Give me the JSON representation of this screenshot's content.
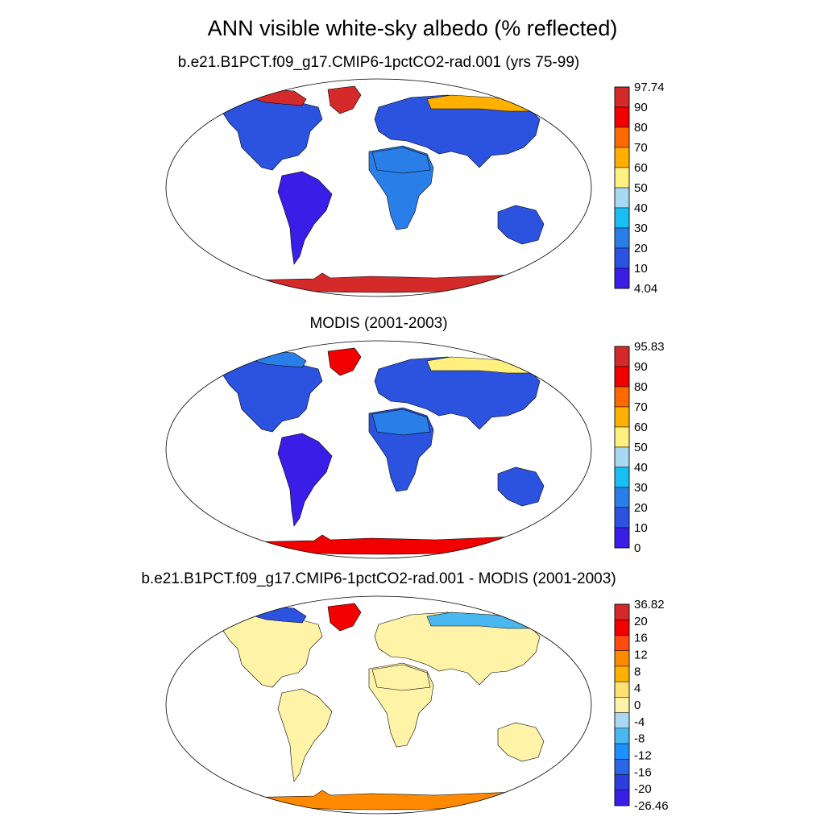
{
  "figure": {
    "title": "ANN visible white-sky albedo (% reflected)"
  },
  "colors": {
    "ocean": "#ffffff",
    "coast": "#000000",
    "outline": "#000000"
  },
  "panels": [
    {
      "id": "model",
      "title": "b.e21.B1PCT.f09_g17.CMIP6-1pctCO2-rad.001 (yrs 75-99)",
      "colorbar": {
        "max_label": "97.74",
        "min_label": "4.04",
        "labels": [
          "97.74",
          "90",
          "80",
          "70",
          "60",
          "50",
          "40",
          "30",
          "20",
          "10",
          "4.04"
        ],
        "colors": [
          "#d42a2a",
          "#f20000",
          "#ff6a00",
          "#ffb000",
          "#fff080",
          "#a9d8f3",
          "#19bff2",
          "#2a7ee8",
          "#2c52e0",
          "#3a1ee8"
        ]
      },
      "regions": {
        "north_america": "#2c52e0",
        "arctic_canada": "#d42a2a",
        "greenland": "#d42a2a",
        "south_america": "#3a1ee8",
        "africa": "#2a7ee8",
        "sahara": "#2a7ee8",
        "eurasia": "#2c52e0",
        "siberia_north": "#ffb000",
        "australia": "#2c52e0",
        "antarctica": "#d42a2a"
      }
    },
    {
      "id": "obs",
      "title": "MODIS (2001-2003)",
      "colorbar": {
        "max_label": "95.83",
        "min_label": "0",
        "labels": [
          "95.83",
          "90",
          "80",
          "70",
          "60",
          "50",
          "40",
          "30",
          "20",
          "10",
          "0"
        ],
        "colors": [
          "#d42a2a",
          "#f20000",
          "#ff6a00",
          "#ffb000",
          "#fff080",
          "#a9d8f3",
          "#19bff2",
          "#2a7ee8",
          "#2c52e0",
          "#3a1ee8"
        ]
      },
      "regions": {
        "north_america": "#2c52e0",
        "arctic_canada": "#2a7ee8",
        "greenland": "#f20000",
        "south_america": "#3a1ee8",
        "africa": "#2c52e0",
        "sahara": "#2a7ee8",
        "eurasia": "#2c52e0",
        "siberia_north": "#fff080",
        "australia": "#2c52e0",
        "antarctica": "#f20000"
      }
    },
    {
      "id": "diff",
      "title": "b.e21.B1PCT.f09_g17.CMIP6-1pctCO2-rad.001 - MODIS (2001-2003)",
      "colorbar": {
        "max_label": "36.82",
        "min_label": "-26.46",
        "labels": [
          "36.82",
          "20",
          "16",
          "12",
          "8",
          "4",
          "0",
          "-4",
          "-8",
          "-12",
          "-16",
          "-20",
          "-26.46"
        ],
        "colors": [
          "#d42a2a",
          "#f20000",
          "#ff4a10",
          "#ff8a00",
          "#ffb000",
          "#ffe070",
          "#fff3a8",
          "#a9d8f3",
          "#4ab8f0",
          "#1e90ff",
          "#2a66e8",
          "#2c3ee0",
          "#3a1ee8"
        ]
      },
      "regions": {
        "north_america": "#fff3a8",
        "arctic_canada": "#2c52e0",
        "greenland": "#f20000",
        "south_america": "#fff3a8",
        "africa": "#fff3a8",
        "sahara": "#fff3a8",
        "eurasia": "#fff3a8",
        "siberia_north": "#4ab8f0",
        "australia": "#fff3a8",
        "antarctica": "#ff8a00"
      }
    }
  ]
}
